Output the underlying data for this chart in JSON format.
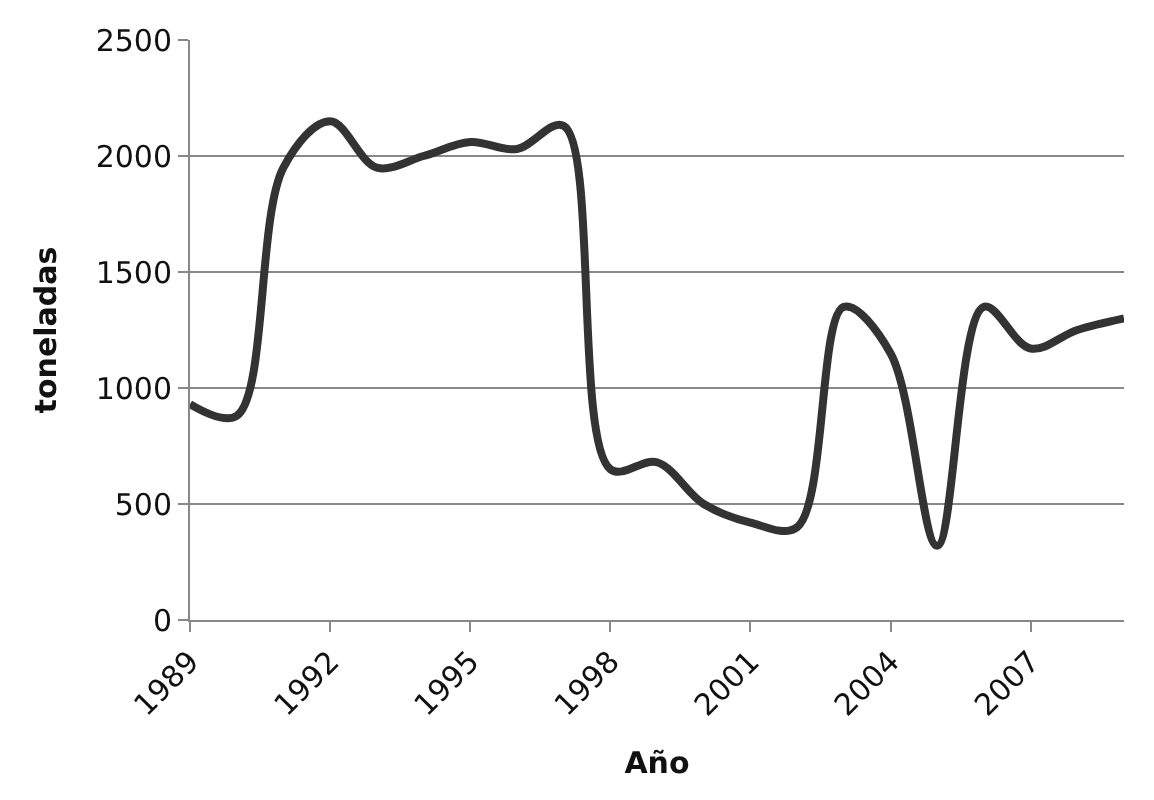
{
  "chart_data": {
    "type": "line",
    "xlabel": "Año",
    "ylabel": "toneladas",
    "x": [
      1989,
      1990,
      1991,
      1992,
      1993,
      1994,
      1995,
      1996,
      1997,
      1998,
      1999,
      2000,
      2001,
      2002,
      2003,
      2004,
      2005,
      2006,
      2007,
      2008,
      2009
    ],
    "series": [
      {
        "color": "#333333",
        "values": [
          930,
          880,
          1950,
          2150,
          1950,
          2000,
          2060,
          2030,
          2130,
          650,
          680,
          500,
          420,
          400,
          1350,
          1150,
          320,
          1350,
          1170,
          1250,
          1300
        ]
      }
    ],
    "xlim": [
      1989,
      2009
    ],
    "xticks": [
      1989,
      1992,
      1995,
      1998,
      2001,
      2004,
      2007
    ],
    "ylim": [
      0,
      2500
    ],
    "yticks": [
      0,
      500,
      1000,
      1500,
      2000,
      2500
    ],
    "grid": "y",
    "legend": false,
    "marker": "none",
    "line_style": "solid"
  }
}
